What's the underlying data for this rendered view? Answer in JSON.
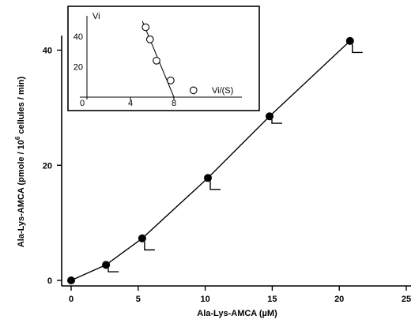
{
  "chart_data": [
    {
      "type": "line",
      "xlabel": "Ala-Lys-AMCA  (µM)",
      "ylabel_main": "Ala-Lys-AMCA  (pmole / 10",
      "ylabel_sup": "6",
      "ylabel_tail": " cellules / min)",
      "xlim": [
        0,
        25
      ],
      "ylim": [
        0,
        45
      ],
      "x_ticks": [
        0,
        5,
        10,
        15,
        20,
        25
      ],
      "x_tick_labels": [
        "0",
        "5",
        "10",
        "15",
        "20",
        "25"
      ],
      "y_ticks": [
        0,
        20,
        40
      ],
      "y_tick_labels": [
        "0",
        "20",
        "40"
      ],
      "points": [
        {
          "x": 0,
          "y": 0,
          "err": 0
        },
        {
          "x": 2.6,
          "y": 2.7,
          "err": 1.2
        },
        {
          "x": 5.3,
          "y": 7.3,
          "err": 2.0
        },
        {
          "x": 10.2,
          "y": 17.8,
          "err": 2.0
        },
        {
          "x": 14.8,
          "y": 28.5,
          "err": 1.2
        },
        {
          "x": 20.8,
          "y": 41.6,
          "err": 2.0
        }
      ]
    },
    {
      "type": "scatter",
      "xlabel": "Vi/(S)",
      "ylabel": "Vi",
      "xlim": [
        0,
        12
      ],
      "ylim": [
        0,
        55
      ],
      "x_ticks": [
        0,
        4,
        8
      ],
      "x_tick_labels": [
        "0",
        "4",
        "8"
      ],
      "y_ticks": [
        20,
        40
      ],
      "y_tick_labels": [
        "20",
        "40"
      ],
      "points": [
        {
          "x": 5.4,
          "y": 46
        },
        {
          "x": 5.8,
          "y": 38
        },
        {
          "x": 6.4,
          "y": 24
        },
        {
          "x": 7.7,
          "y": 11
        },
        {
          "x": 9.8,
          "y": 4.5
        }
      ],
      "fit_line": {
        "x1": 5.1,
        "y1": 50,
        "x2": 8.0,
        "y2": 0
      }
    }
  ]
}
